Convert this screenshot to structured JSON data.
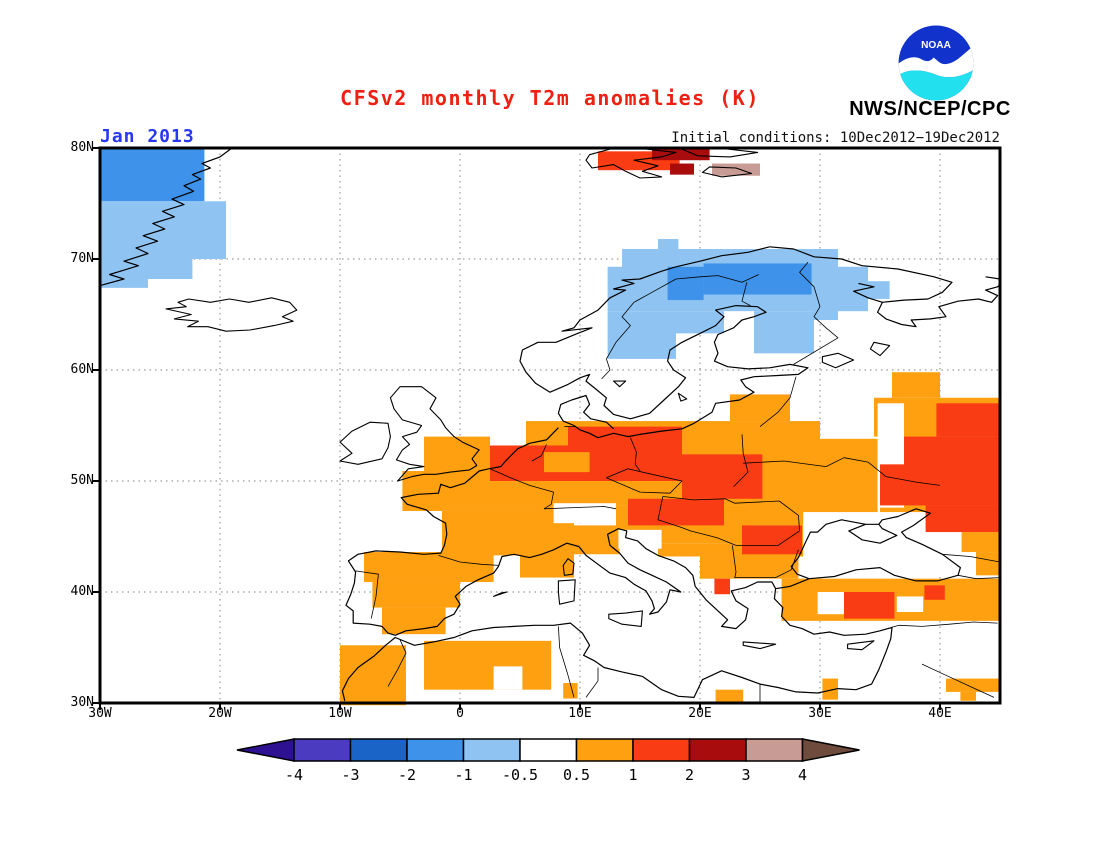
{
  "header": {
    "title": "CFSv2 monthly T2m anomalies (K)",
    "period_label": "Jan 2013",
    "init_label": "Initial conditions: 10Dec2012−19Dec2012",
    "agency": "NWS/NCEP/CPC",
    "noaa_label": "NOAA"
  },
  "colors": {
    "title_red": "#ee2014",
    "period_blue": "#2838f0",
    "grid_gray": "#9a9a9a",
    "coast_black": "#000000",
    "logo_dark_blue": "#1133cc",
    "logo_cyan": "#22e0ee"
  },
  "chart_data": {
    "type": "heatmap",
    "title": "CFSv2 monthly T2m anomalies (K)",
    "subtitle": "Jan 2013",
    "units": "K",
    "region": "Europe / North Atlantic",
    "lon_range": [
      -30,
      45
    ],
    "lat_range": [
      30,
      80
    ],
    "grid": true,
    "x_ticks": [
      "30W",
      "20W",
      "10W",
      "0",
      "10E",
      "20E",
      "30E",
      "40E"
    ],
    "x_tick_lons": [
      -30,
      -20,
      -10,
      0,
      10,
      20,
      30,
      40
    ],
    "y_ticks": [
      "80N",
      "70N",
      "60N",
      "50N",
      "40N",
      "30N"
    ],
    "y_tick_lats": [
      80,
      70,
      60,
      50,
      40,
      30
    ],
    "colorbar": {
      "tick_labels": [
        "-4",
        "-3",
        "-2",
        "-1",
        "-0.5",
        "0.5",
        "1",
        "2",
        "3",
        "4"
      ],
      "segment_colors": [
        "#4b3bc0",
        "#1a64c8",
        "#3e92ea",
        "#8fc4f2",
        "#ffffff",
        "#ffa010",
        "#fa3c14",
        "#a80c0c",
        "#c89c94"
      ],
      "arrow_left_color": "#2d1190",
      "arrow_right_color": "#6e4b3c"
    },
    "bin_colors": {
      "n2": "#3e92ea",
      "n1": "#8fc4f2",
      "w": "#ffffff",
      "p1": "#ffa010",
      "p2": "#fa3c14",
      "p3": "#a80c0c",
      "p4": "#c89c94"
    },
    "bin_ranges": {
      "n2": "-2 to -1",
      "n1": "-1 to -0.5",
      "w": "-0.5 to 0.5",
      "p1": "0.5 to 1",
      "p2": "1 to 2",
      "p3": "2 to 3",
      "p4": "3 to 4"
    },
    "anomaly_cells": [
      [
        "n2",
        -30,
        80,
        -21.3,
        75.2
      ],
      [
        "n1",
        -30,
        75.2,
        -19.5,
        70
      ],
      [
        "n1",
        -30,
        70,
        -22.3,
        68.2
      ],
      [
        "n1",
        -30,
        68.2,
        -26,
        67.4
      ],
      [
        "n1",
        16.5,
        71.8,
        18.2,
        70.9
      ],
      [
        "n1",
        13.5,
        70.9,
        31.5,
        68.8
      ],
      [
        "n1",
        12.3,
        69.3,
        34,
        65.3
      ],
      [
        "n1",
        34,
        68,
        35.8,
        66.4
      ],
      [
        "n1",
        12.3,
        65.3,
        18,
        61
      ],
      [
        "n1",
        18,
        65.3,
        22,
        63.3
      ],
      [
        "n1",
        24.5,
        65.3,
        29.5,
        61.5
      ],
      [
        "n1",
        29.5,
        66.8,
        31.5,
        64.5
      ],
      [
        "n2",
        17.3,
        69.3,
        20.3,
        66.3
      ],
      [
        "n2",
        20.3,
        69.6,
        29.3,
        66.8
      ],
      [
        "p1",
        -3,
        54,
        2.5,
        50.8
      ],
      [
        "p1",
        -4.8,
        50.9,
        8,
        47.3
      ],
      [
        "p1",
        -1.5,
        47.3,
        8,
        43.3
      ],
      [
        "p1",
        5,
        46.3,
        9.5,
        41.3
      ],
      [
        "p1",
        9.5,
        46,
        13.3,
        43.4
      ],
      [
        "p1",
        -8,
        43.6,
        2.8,
        40.9
      ],
      [
        "p1",
        -7.3,
        40.9,
        0,
        38.6
      ],
      [
        "p1",
        -6.5,
        38.6,
        -1.2,
        36.2
      ],
      [
        "p1",
        -10,
        35.2,
        -4.5,
        29.8
      ],
      [
        "p1",
        -3,
        35.6,
        7.6,
        31.2
      ],
      [
        "p1",
        8.6,
        31.8,
        9.8,
        30.4
      ],
      [
        "p1",
        21.3,
        31.2,
        23.6,
        30.1
      ],
      [
        "p1",
        30.2,
        32.2,
        31.5,
        30.3
      ],
      [
        "p1",
        40.5,
        32.2,
        45,
        31
      ],
      [
        "p1",
        41.7,
        31,
        43,
        30.2
      ],
      [
        "p1",
        5.5,
        55.4,
        24,
        47.8
      ],
      [
        "p1",
        13,
        47.8,
        24,
        44.4
      ],
      [
        "p1",
        16.5,
        44.4,
        24,
        43.2
      ],
      [
        "p1",
        22.5,
        57.8,
        27.5,
        55.4
      ],
      [
        "p1",
        24,
        55.4,
        30,
        46
      ],
      [
        "p1",
        24,
        46,
        30,
        43.2
      ],
      [
        "p1",
        20,
        43.2,
        28.2,
        41.2
      ],
      [
        "p1",
        30,
        53.8,
        34.8,
        47
      ],
      [
        "p1",
        36,
        59.8,
        40,
        57.5
      ],
      [
        "p1",
        34.5,
        57.5,
        45,
        54
      ],
      [
        "p1",
        35,
        54,
        45,
        45.4
      ],
      [
        "p1",
        38.5,
        45.4,
        45,
        43.6
      ],
      [
        "p1",
        43,
        43.6,
        45,
        41.5
      ],
      [
        "p1",
        26.8,
        41.2,
        45,
        37.4
      ],
      [
        "w",
        2.8,
        33.3,
        5.2,
        31.2
      ],
      [
        "w",
        7.8,
        48,
        13,
        46.2
      ],
      [
        "w",
        13.2,
        45.6,
        16.8,
        43.9
      ],
      [
        "w",
        34.8,
        57,
        37,
        47.6
      ],
      [
        "w",
        28.6,
        47.2,
        41.8,
        41.4
      ],
      [
        "w",
        29.8,
        40,
        32,
        38
      ],
      [
        "w",
        36.4,
        39.6,
        38.6,
        38.2
      ],
      [
        "p2",
        2.5,
        53.2,
        18.5,
        50
      ],
      [
        "p2",
        9,
        54.9,
        18.5,
        53.2
      ],
      [
        "p2",
        18.5,
        52.4,
        25.2,
        48.4
      ],
      [
        "p2",
        14,
        48.4,
        22,
        46
      ],
      [
        "p2",
        23.5,
        46,
        28.5,
        43.4
      ],
      [
        "p2",
        21.2,
        41.2,
        22.5,
        39.8
      ],
      [
        "p2",
        32,
        40,
        36.2,
        37.6
      ],
      [
        "p2",
        38.7,
        40.6,
        40.4,
        39.3
      ],
      [
        "p2",
        39.7,
        57,
        45,
        54
      ],
      [
        "p2",
        37,
        54,
        45,
        50
      ],
      [
        "p2",
        35,
        51.5,
        45,
        47.8
      ],
      [
        "p2",
        38.8,
        47.8,
        45,
        45.4
      ],
      [
        "p2",
        11.5,
        79.7,
        18.3,
        78
      ],
      [
        "p3",
        16,
        80,
        20.8,
        78.9
      ],
      [
        "p3",
        17.5,
        78.6,
        19.5,
        77.6
      ],
      [
        "p4",
        21,
        78.6,
        25,
        77.5
      ],
      [
        "p1",
        7,
        52.6,
        10.8,
        50.8
      ]
    ]
  }
}
